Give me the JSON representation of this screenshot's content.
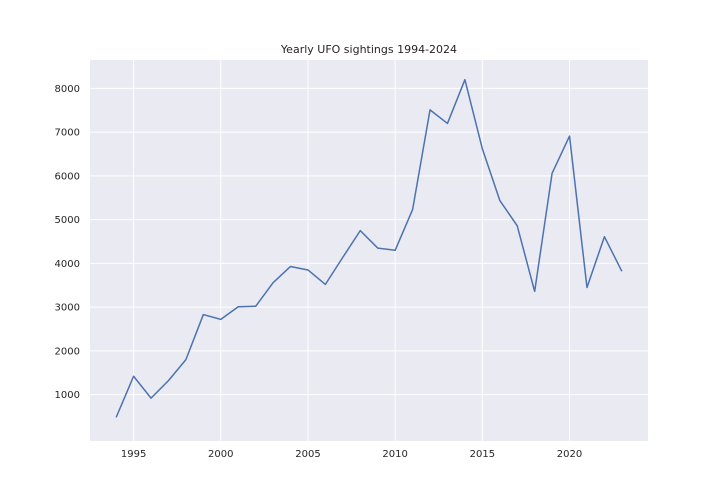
{
  "chart_data": {
    "type": "line",
    "title": "Yearly UFO sightings 1994-2024",
    "xlabel": "",
    "ylabel": "",
    "xlim": [
      1992.5,
      2024.5
    ],
    "ylim": [
      -60,
      8650
    ],
    "xticks": [
      1995,
      2000,
      2005,
      2010,
      2015,
      2020
    ],
    "yticks": [
      1000,
      2000,
      3000,
      4000,
      5000,
      6000,
      7000,
      8000
    ],
    "grid": true,
    "legend": "none",
    "colors": {
      "background": "#eaeaf2",
      "grid": "#ffffff",
      "line": "#4c72b0"
    },
    "series": [
      {
        "x": [
          1994,
          1995,
          1996,
          1997,
          1998,
          1999,
          2000,
          2001,
          2002,
          2003,
          2004,
          2005,
          2006,
          2007,
          2008,
          2009,
          2010,
          2011,
          2012,
          2013,
          2014,
          2015,
          2016,
          2017,
          2018,
          2019,
          2020,
          2021,
          2022,
          2023
        ],
        "values": [
          480,
          1420,
          920,
          1320,
          1800,
          2830,
          2720,
          3010,
          3020,
          3560,
          3930,
          3850,
          3520,
          4140,
          4750,
          4350,
          4300,
          5230,
          7510,
          7200,
          8200,
          6620,
          5440,
          4860,
          3360,
          6060,
          6910,
          3450,
          4610,
          3820
        ]
      }
    ]
  }
}
